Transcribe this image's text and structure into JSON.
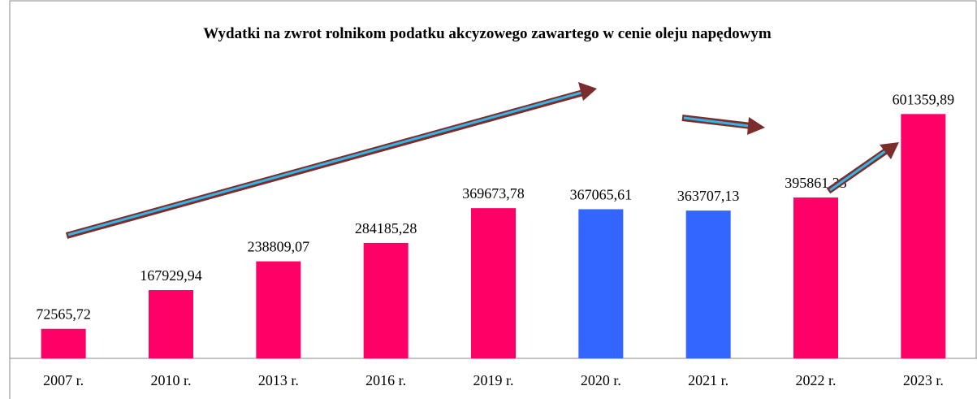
{
  "chart_data": {
    "type": "bar",
    "title": "Wydatki na zwrot rolnikom podatku akcyzowego zawartego w cenie oleju napędowym",
    "categories": [
      "2007 r.",
      "2010 r.",
      "2013 r.",
      "2016 r.",
      "2019 r.",
      "2020 r.",
      "2021 r.",
      "2022 r.",
      "2023 r."
    ],
    "values": [
      72565.72,
      167929.94,
      238809.07,
      284185.28,
      369673.78,
      367065.61,
      363707.13,
      395861.33,
      601359.89
    ],
    "value_labels": [
      "72565,72",
      "167929,94",
      "238809,07",
      "284185,28",
      "369673,78",
      "367065,61",
      "363707,13",
      "395861,33",
      "601359,89"
    ],
    "colors": [
      "#ff0066",
      "#ff0066",
      "#ff0066",
      "#ff0066",
      "#ff0066",
      "#3366ff",
      "#3366ff",
      "#ff0066",
      "#ff0066"
    ],
    "ylim": [
      0,
      700000
    ]
  }
}
